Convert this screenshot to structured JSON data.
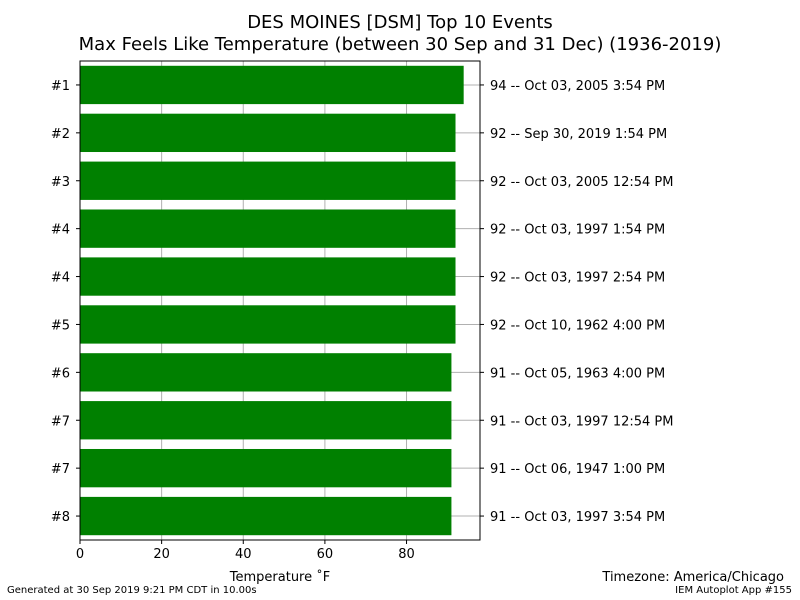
{
  "chart_data": {
    "type": "bar",
    "orientation": "horizontal",
    "title_line1": "DES MOINES [DSM] Top 10 Events",
    "title_line2": "Max Feels Like Temperature (between 30 Sep and 31 Dec) (1936-2019)",
    "xlabel": "Temperature ˚F",
    "xlim": [
      0,
      98
    ],
    "xticks": [
      0,
      20,
      40,
      60,
      80
    ],
    "grid": true,
    "bar_color": "#008000",
    "categories": [
      "#1",
      "#2",
      "#3",
      "#4",
      "#4",
      "#5",
      "#6",
      "#7",
      "#7",
      "#8"
    ],
    "values": [
      94,
      92,
      92,
      92,
      92,
      92,
      91,
      91,
      91,
      91
    ],
    "right_labels": [
      "94 -- Oct 03, 2005 3:54 PM",
      "92 -- Sep 30, 2019 1:54 PM",
      "92 -- Oct 03, 2005 12:54 PM",
      "92 -- Oct 03, 1997 1:54 PM",
      "92 -- Oct 03, 1997 2:54 PM",
      "92 -- Oct 10, 1962 4:00 PM",
      "91 -- Oct 05, 1963 4:00 PM",
      "91 -- Oct 03, 1997 12:54 PM",
      "91 -- Oct 06, 1947 1:00 PM",
      "91 -- Oct 03, 1997 3:54 PM"
    ]
  },
  "footer": {
    "generated": "Generated at 30 Sep 2019 9:21 PM CDT in 10.00s",
    "timezone": "Timezone: America/Chicago",
    "app": "IEM Autoplot App #155"
  }
}
